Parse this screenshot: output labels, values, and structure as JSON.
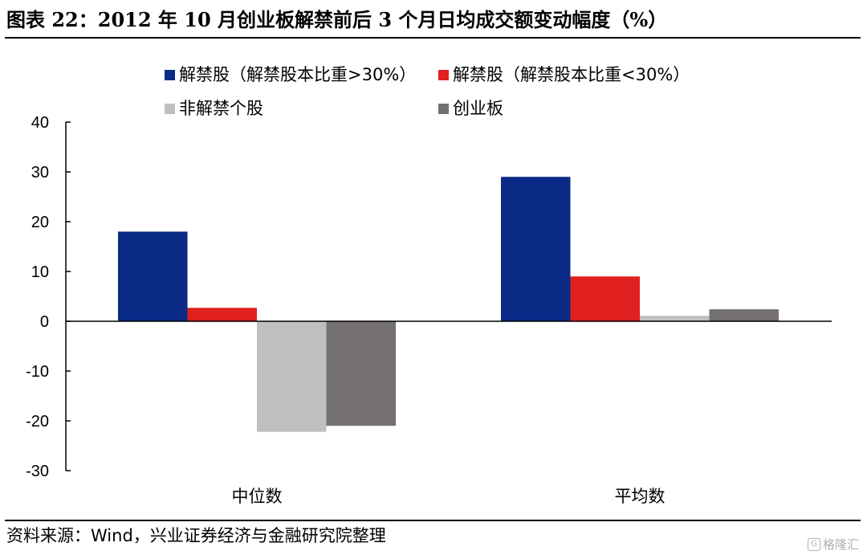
{
  "title": "图表 22：2012 年 10 月创业板解禁前后 3 个月日均成交额变动幅度（%）",
  "source": "资料来源：Wind，兴业证券经济与金融研究院整理",
  "watermark": {
    "text": "格隆汇",
    "logo": "G"
  },
  "chart_data": {
    "type": "bar",
    "title": "2012 年 10 月创业板解禁前后 3 个月日均成交额变动幅度（%）",
    "xlabel": "",
    "ylabel": "",
    "categories": [
      "中位数",
      "平均数"
    ],
    "series": [
      {
        "name": "解禁股（解禁股本比重>30%）",
        "color": "#0a2a86",
        "values": [
          18,
          29
        ]
      },
      {
        "name": "解禁股（解禁股本比重<30%）",
        "color": "#e0201f",
        "values": [
          2.7,
          9
        ]
      },
      {
        "name": "非解禁个股",
        "color": "#bfbfbf",
        "values": [
          -22.2,
          1.1
        ]
      },
      {
        "name": "创业板",
        "color": "#767171",
        "values": [
          -21,
          2.4
        ]
      }
    ],
    "ylim": [
      -30,
      40
    ],
    "yticks": [
      "40",
      "30",
      "20",
      "10",
      "0",
      "-10",
      "-20",
      "-30"
    ],
    "grid": false,
    "legend_position": "top"
  }
}
